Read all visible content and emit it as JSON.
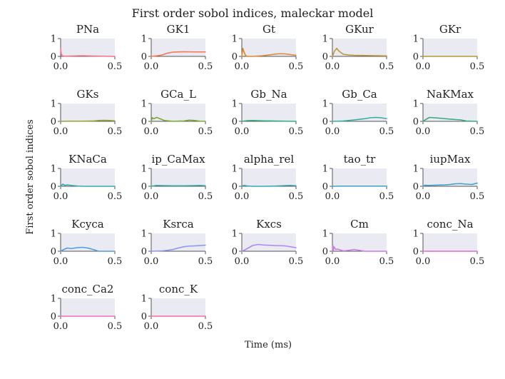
{
  "chart_data": {
    "type": "line",
    "title": "First order sobol indices, maleckar model",
    "xlabel": "Time (ms)",
    "ylabel": "First order sobol indices",
    "xlim": [
      0,
      0.5
    ],
    "ylim": [
      0,
      1
    ],
    "xticks": [
      "0.0",
      "0.5"
    ],
    "yticks": [
      "0",
      "1"
    ],
    "grid": false,
    "panel_background": "#eaeaf2",
    "panels": [
      {
        "title": "PNa",
        "color": "#f77189",
        "x": [
          0,
          0.005,
          0.015,
          0.04,
          0.1,
          0.2,
          0.3,
          0.4,
          0.5
        ],
        "y": [
          0.45,
          0.15,
          0.03,
          0.01,
          0.02,
          0.04,
          0.02,
          0.01,
          0.0
        ]
      },
      {
        "title": "GK1",
        "color": "#f7754f",
        "x": [
          0,
          0.05,
          0.1,
          0.15,
          0.2,
          0.3,
          0.4,
          0.5
        ],
        "y": [
          0.0,
          0.03,
          0.08,
          0.18,
          0.24,
          0.26,
          0.25,
          0.25
        ]
      },
      {
        "title": "Gt",
        "color": "#dc8932",
        "x": [
          0,
          0.01,
          0.02,
          0.035,
          0.05,
          0.1,
          0.2,
          0.3,
          0.35,
          0.4,
          0.45,
          0.5
        ],
        "y": [
          0.0,
          0.45,
          0.25,
          0.05,
          0.0,
          0.0,
          0.04,
          0.12,
          0.15,
          0.14,
          0.1,
          0.06
        ]
      },
      {
        "title": "GKur",
        "color": "#c39532",
        "x": [
          0,
          0.02,
          0.04,
          0.06,
          0.1,
          0.15,
          0.2,
          0.3,
          0.4,
          0.5
        ],
        "y": [
          0.0,
          0.3,
          0.45,
          0.3,
          0.12,
          0.08,
          0.06,
          0.05,
          0.04,
          0.03
        ]
      },
      {
        "title": "GKr",
        "color": "#ae9d31",
        "x": [
          0,
          0.1,
          0.2,
          0.3,
          0.4,
          0.5
        ],
        "y": [
          0.0,
          0.0,
          0.0,
          0.0,
          0.0,
          0.0
        ]
      },
      {
        "title": "GKs",
        "color": "#97a431",
        "x": [
          0,
          0.1,
          0.2,
          0.3,
          0.35,
          0.4,
          0.45,
          0.5
        ],
        "y": [
          0.0,
          0.01,
          0.01,
          0.02,
          0.05,
          0.06,
          0.05,
          0.03
        ]
      },
      {
        "title": "GCa_L",
        "color": "#77ab31",
        "x": [
          0,
          0.01,
          0.025,
          0.05,
          0.08,
          0.12,
          0.2,
          0.3,
          0.35,
          0.4,
          0.45,
          0.5
        ],
        "y": [
          0.0,
          0.2,
          0.15,
          0.22,
          0.15,
          0.05,
          0.0,
          0.02,
          0.07,
          0.05,
          0.01,
          0.0
        ]
      },
      {
        "title": "Gb_Na",
        "color": "#33b07a",
        "x": [
          0,
          0.05,
          0.1,
          0.2,
          0.3,
          0.4,
          0.5
        ],
        "y": [
          0.0,
          0.04,
          0.05,
          0.03,
          0.02,
          0.01,
          0.0
        ]
      },
      {
        "title": "Gb_Ca",
        "color": "#35ad9c",
        "x": [
          0,
          0.1,
          0.2,
          0.3,
          0.35,
          0.4,
          0.45,
          0.5
        ],
        "y": [
          0.0,
          0.02,
          0.08,
          0.15,
          0.2,
          0.22,
          0.2,
          0.15
        ]
      },
      {
        "title": "NaKMax",
        "color": "#36ab7e",
        "x": [
          0,
          0.03,
          0.06,
          0.1,
          0.15,
          0.2,
          0.3,
          0.35,
          0.4,
          0.5
        ],
        "y": [
          0.0,
          0.12,
          0.22,
          0.2,
          0.18,
          0.15,
          0.1,
          0.08,
          0.02,
          0.0
        ]
      },
      {
        "title": "KNaCa",
        "color": "#37abb4",
        "x": [
          0,
          0.02,
          0.04,
          0.06,
          0.1,
          0.15,
          0.2,
          0.3,
          0.4,
          0.5
        ],
        "y": [
          0.0,
          0.12,
          0.05,
          0.08,
          0.05,
          0.02,
          0.0,
          0.0,
          0.0,
          0.0
        ]
      },
      {
        "title": "ip_CaMax",
        "color": "#38aaac",
        "x": [
          0,
          0.05,
          0.1,
          0.2,
          0.3,
          0.4,
          0.45,
          0.5
        ],
        "y": [
          0.0,
          0.05,
          0.04,
          0.03,
          0.03,
          0.04,
          0.05,
          0.03
        ]
      },
      {
        "title": "alpha_rel",
        "color": "#39a7b7",
        "x": [
          0,
          0.02,
          0.05,
          0.1,
          0.2,
          0.3,
          0.4,
          0.45,
          0.5
        ],
        "y": [
          0.0,
          0.05,
          0.02,
          0.0,
          0.0,
          0.01,
          0.04,
          0.05,
          0.03
        ]
      },
      {
        "title": "tao_tr",
        "color": "#3ba3c4",
        "x": [
          0,
          0.1,
          0.2,
          0.3,
          0.4,
          0.5
        ],
        "y": [
          0.0,
          0.01,
          0.01,
          0.01,
          0.01,
          0.01
        ]
      },
      {
        "title": "iupMax",
        "color": "#3da0cd",
        "x": [
          0,
          0.02,
          0.05,
          0.1,
          0.2,
          0.25,
          0.3,
          0.35,
          0.4,
          0.45,
          0.5
        ],
        "y": [
          0.0,
          0.06,
          0.05,
          0.06,
          0.08,
          0.1,
          0.14,
          0.15,
          0.12,
          0.1,
          0.18
        ]
      },
      {
        "title": "Kcyca",
        "color": "#539be5",
        "x": [
          0,
          0.03,
          0.06,
          0.1,
          0.15,
          0.2,
          0.25,
          0.3,
          0.35,
          0.4,
          0.5
        ],
        "y": [
          0.0,
          0.1,
          0.18,
          0.15,
          0.2,
          0.22,
          0.18,
          0.1,
          0.0,
          0.0,
          0.0
        ]
      },
      {
        "title": "Ksrca",
        "color": "#8e92f4",
        "x": [
          0,
          0.1,
          0.15,
          0.2,
          0.25,
          0.3,
          0.35,
          0.4,
          0.45,
          0.5
        ],
        "y": [
          0.0,
          0.02,
          0.05,
          0.1,
          0.18,
          0.25,
          0.29,
          0.3,
          0.32,
          0.34
        ]
      },
      {
        "title": "Kxcs",
        "color": "#b186f4",
        "x": [
          0,
          0.02,
          0.05,
          0.1,
          0.15,
          0.2,
          0.3,
          0.4,
          0.45,
          0.5
        ],
        "y": [
          0.0,
          0.05,
          0.15,
          0.32,
          0.38,
          0.35,
          0.32,
          0.3,
          0.25,
          0.2
        ]
      },
      {
        "title": "Cm",
        "color": "#cc79ea",
        "x": [
          0,
          0.004,
          0.008,
          0.015,
          0.03,
          0.05,
          0.1,
          0.15,
          0.2,
          0.25,
          0.3,
          0.5
        ],
        "y": [
          0.0,
          0.35,
          0.05,
          0.25,
          0.1,
          0.12,
          0.02,
          0.05,
          0.1,
          0.05,
          0.0,
          0.0
        ]
      },
      {
        "title": "conc_Na",
        "color": "#e366d9",
        "x": [
          0,
          0.1,
          0.2,
          0.3,
          0.4,
          0.5
        ],
        "y": [
          0.0,
          0.0,
          0.0,
          0.0,
          0.0,
          0.0
        ]
      },
      {
        "title": "conc_Ca2",
        "color": "#f26cba",
        "x": [
          0,
          0.1,
          0.2,
          0.3,
          0.4,
          0.5
        ],
        "y": [
          0.0,
          0.0,
          0.0,
          0.0,
          0.0,
          0.0
        ]
      },
      {
        "title": "conc_K",
        "color": "#f46d9f",
        "x": [
          0,
          0.1,
          0.2,
          0.3,
          0.4,
          0.5
        ],
        "y": [
          0.0,
          0.0,
          0.0,
          0.0,
          0.0,
          0.0
        ]
      }
    ]
  }
}
